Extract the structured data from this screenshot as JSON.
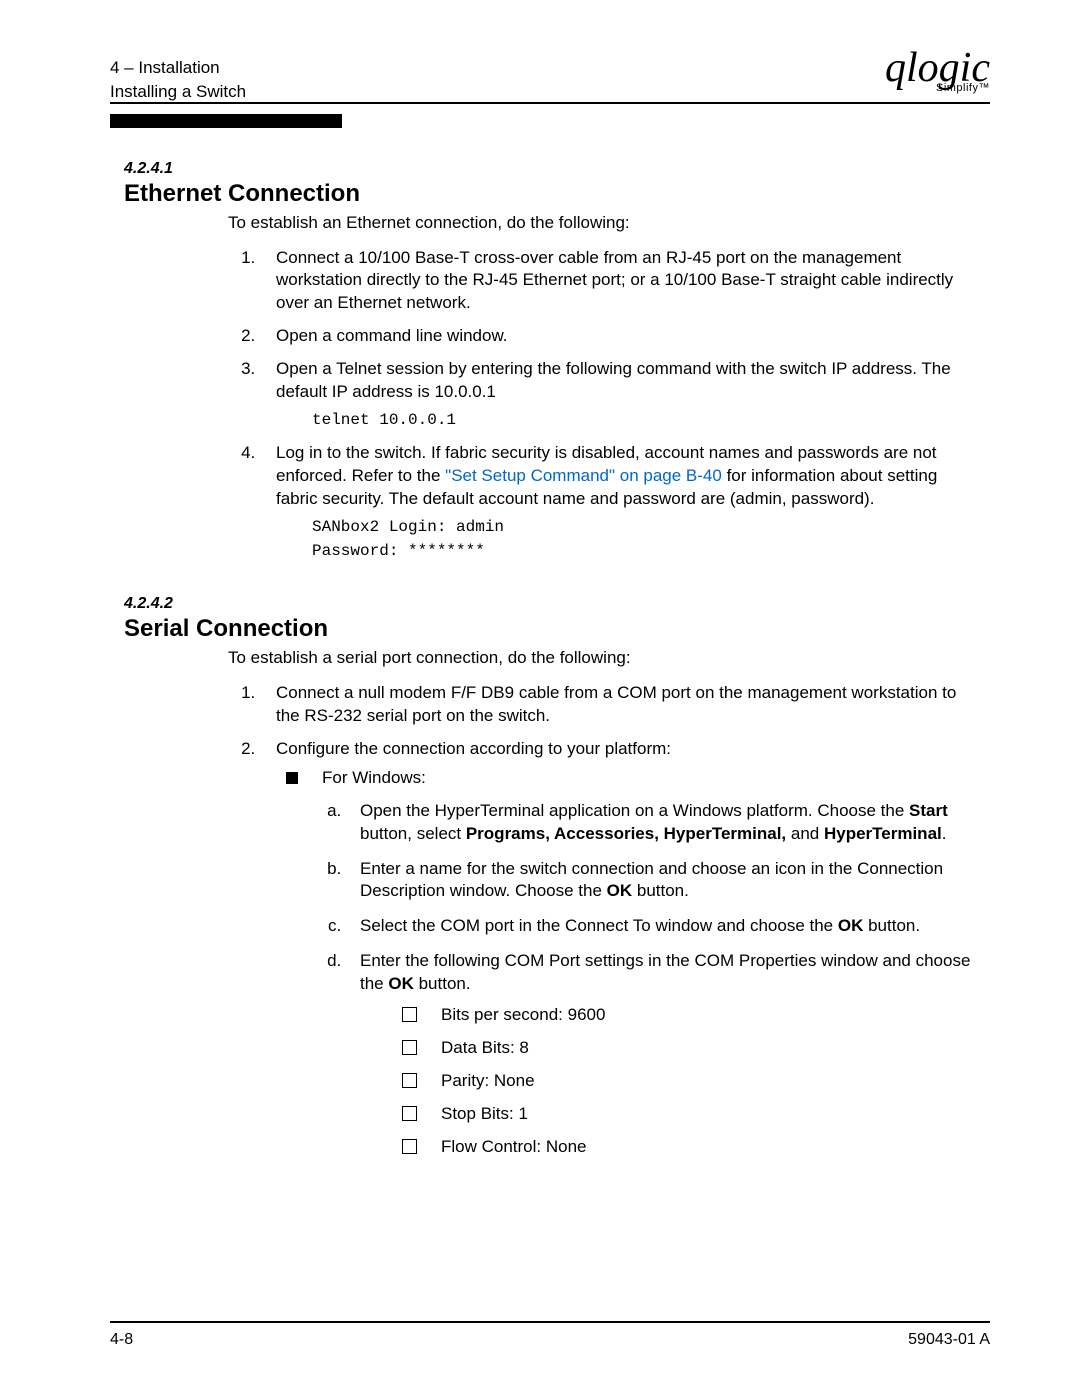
{
  "header": {
    "chapter_line": "4 – Installation",
    "sub_line": "Installing a Switch",
    "logo_main": "qlogic",
    "logo_sub": "Simplify™"
  },
  "sec1": {
    "num": "4.2.4.1",
    "title": "Ethernet Connection",
    "intro": "To establish an Ethernet connection, do the following:",
    "step1": "Connect a 10/100 Base-T cross-over cable from an RJ-45 port on the management workstation directly to the RJ-45 Ethernet port; or a 10/100 Base-T straight cable indirectly over an Ethernet network.",
    "step2": "Open a command line window.",
    "step3": "Open a Telnet session by entering the following command with the switch IP address. The default IP address is 10.0.0.1",
    "code1": "telnet 10.0.0.1",
    "step4_a": "Log in to the switch. If fabric security is disabled, account names and passwords are not enforced. Refer to the ",
    "step4_link": "\"Set Setup Command\" on page B-40",
    "step4_b": " for information about setting fabric security. The default account name and password are (admin, password).",
    "code2": "SANbox2 Login: admin\nPassword: ********"
  },
  "sec2": {
    "num": "4.2.4.2",
    "title": "Serial Connection",
    "intro": "To establish a serial port connection, do the following:",
    "step1": "Connect a null modem F/F DB9 cable from a COM port on the management workstation to the RS-232 serial port on the switch.",
    "step2": "Configure the connection according to your platform:",
    "bullet_label": "For Windows:",
    "a_pre": "Open the HyperTerminal application on a Windows platform. Choose the ",
    "a_b1": "Start",
    "a_mid1": " button, select ",
    "a_b2": "Programs, Accessories, HyperTerminal,",
    "a_mid2": " and ",
    "a_b3": "HyperTerminal",
    "a_post": ".",
    "b_pre": "Enter a name for the switch connection and choose an icon in the Connection Description window. Choose the ",
    "b_b1": "OK",
    "b_post": " button.",
    "c_pre": "Select the COM port in the Connect To window and choose the ",
    "c_b1": "OK",
    "c_post": " button.",
    "d_pre": "Enter the following COM Port settings in the COM Properties window and choose the ",
    "d_b1": "OK",
    "d_post": " button.",
    "settings": {
      "s1": "Bits per second: 9600",
      "s2": "Data Bits: 8",
      "s3": "Parity: None",
      "s4": "Stop Bits: 1",
      "s5": "Flow Control: None"
    }
  },
  "footer": {
    "left": "4-8",
    "right": "59043-01  A"
  }
}
